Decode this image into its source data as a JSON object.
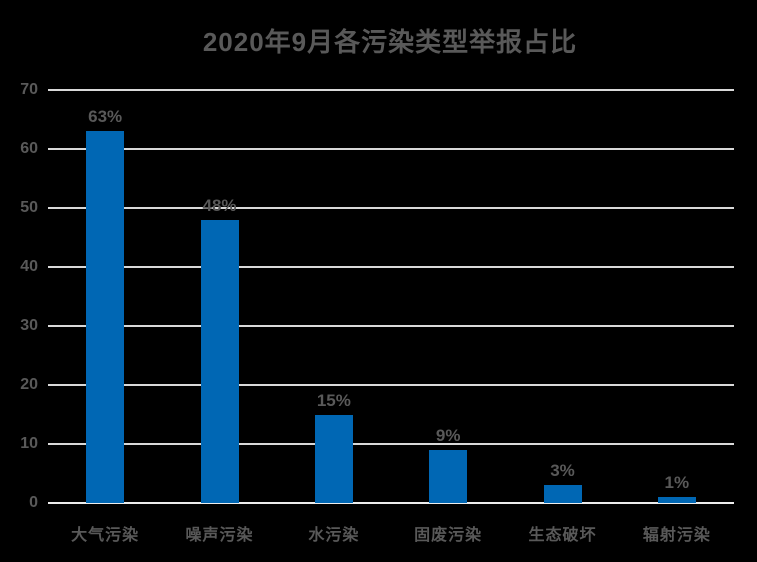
{
  "chart_data": {
    "type": "bar",
    "title": "2020年9月各污染类型举报占比",
    "categories": [
      "大气污染",
      "噪声污染",
      "水污染",
      "固废污染",
      "生态破坏",
      "辐射污染"
    ],
    "values": [
      63,
      48,
      15,
      9,
      3,
      1
    ],
    "value_labels": [
      "63%",
      "48%",
      "15%",
      "9%",
      "3%",
      "1%"
    ],
    "xlabel": "",
    "ylabel": "",
    "ylim": [
      0,
      70
    ],
    "yticks": [
      0,
      10,
      20,
      30,
      40,
      50,
      60,
      70
    ],
    "grid": true,
    "legend": false,
    "legend_position": "none",
    "colors": {
      "background": "#000000",
      "bar": "#0067B4",
      "text": "#595959",
      "gridline": "#D9D9D9"
    }
  }
}
